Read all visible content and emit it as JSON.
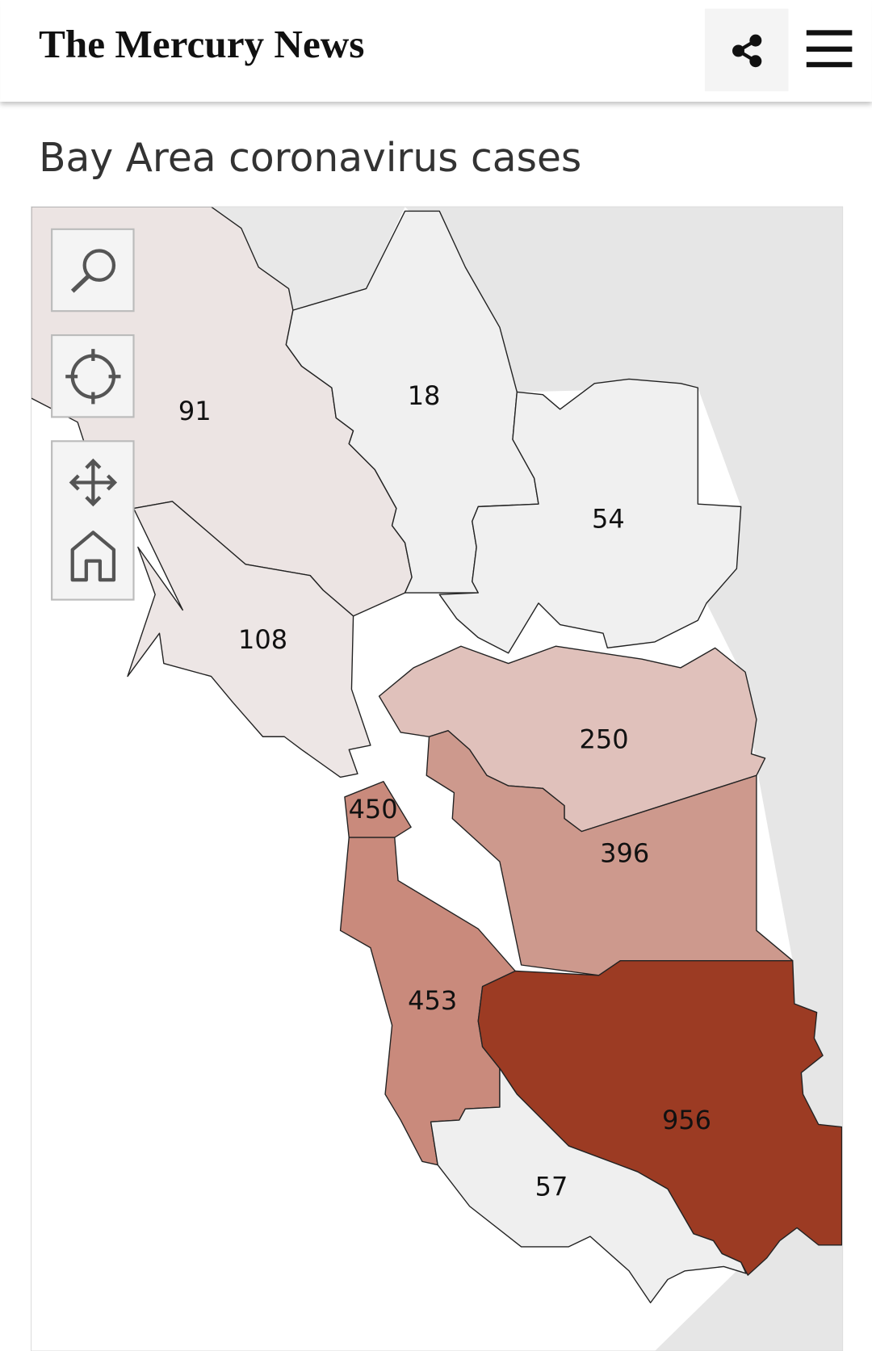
{
  "header": {
    "logo": "The Mercury News"
  },
  "title": "Bay Area coronavirus cases",
  "map": {
    "regions": [
      {
        "id": "sonoma",
        "value": 91,
        "color": "#ece4e3"
      },
      {
        "id": "napa",
        "value": 18,
        "color": "#f0f0f0"
      },
      {
        "id": "solano",
        "value": 54,
        "color": "#f0f0f0"
      },
      {
        "id": "marin",
        "value": 108,
        "color": "#ede6e5"
      },
      {
        "id": "contra-costa",
        "value": 250,
        "color": "#e0c1bb"
      },
      {
        "id": "alameda",
        "value": 396,
        "color": "#cd998d"
      },
      {
        "id": "san-francisco",
        "value": 450,
        "color": "#c98a7c"
      },
      {
        "id": "san-mateo",
        "value": 453,
        "color": "#c98a7c"
      },
      {
        "id": "santa-clara",
        "value": 956,
        "color": "#9c3b23"
      },
      {
        "id": "santa-cruz",
        "value": 57,
        "color": "#efefef"
      }
    ]
  }
}
